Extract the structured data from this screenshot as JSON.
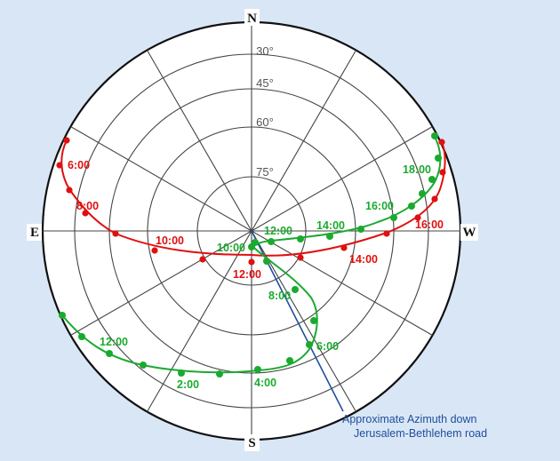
{
  "compass": {
    "north": "N",
    "south": "S",
    "east": "E",
    "west": "W"
  },
  "altitude_labels": [
    "30°",
    "45°",
    "60°",
    "75°"
  ],
  "colors": {
    "red_path": "#e01010",
    "green_path": "#1aaa2e",
    "azimuth_line": "#1f4f9c",
    "grid": "#444444"
  },
  "red_path": {
    "time_labels": [
      "6:00",
      "8:00",
      "10:00",
      "12:00",
      "14:00",
      "16:00"
    ]
  },
  "green_path": {
    "time_labels": [
      "18:00",
      "16:00",
      "14:00",
      "12:00",
      "10:00",
      "8:00",
      "6:00",
      "4:00",
      "2:00",
      "12:00"
    ]
  },
  "annotation": {
    "line1": "Approximate Azimuth down",
    "line2": "Jerusalem-Bethlehem road"
  }
}
